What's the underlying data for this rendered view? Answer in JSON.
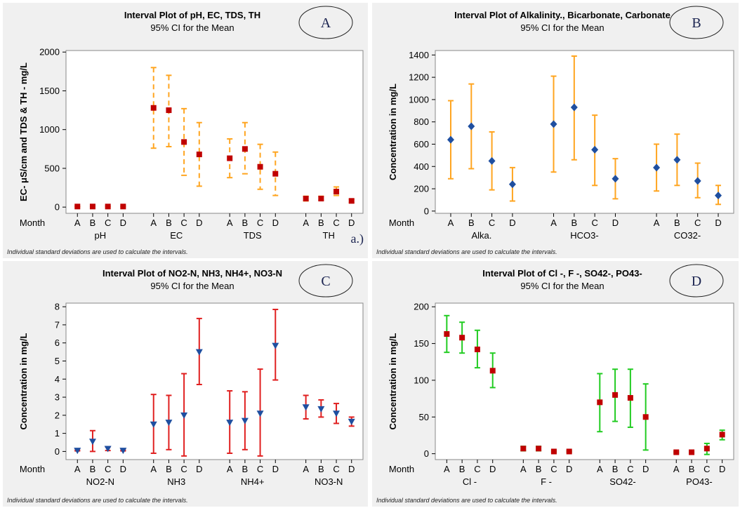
{
  "figure": {
    "footnote": "Individual standard deviations are used to calculate the intervals.",
    "month_label": "Month",
    "sub_label": "a.)"
  },
  "chart_data": [
    {
      "id": "A",
      "badge": "A",
      "type": "interval",
      "title": "Interval Plot of pH, EC, TDS, TH",
      "subtitle": "95% CI for the Mean",
      "ylabel": "EC- μS/cm and TDS & TH - mg/L",
      "ylim": [
        -80,
        2020
      ],
      "yticks": [
        0,
        500,
        1000,
        1500,
        2000
      ],
      "marker": "square",
      "marker_color": "#c00000",
      "bar_color": "#ffa520",
      "dashed": true,
      "groups": [
        {
          "name": "pH",
          "months": [
            "A",
            "B",
            "C",
            "D"
          ],
          "mean": [
            7.5,
            7.6,
            7.4,
            7.5
          ],
          "low": [
            7.0,
            7.1,
            6.9,
            7.0
          ],
          "high": [
            8.0,
            8.1,
            7.9,
            8.0
          ]
        },
        {
          "name": "EC",
          "months": [
            "A",
            "B",
            "C",
            "D"
          ],
          "mean": [
            1280,
            1250,
            840,
            680
          ],
          "low": [
            760,
            780,
            410,
            270
          ],
          "high": [
            1800,
            1700,
            1270,
            1090
          ]
        },
        {
          "name": "TDS",
          "months": [
            "A",
            "B",
            "C",
            "D"
          ],
          "mean": [
            630,
            750,
            520,
            430
          ],
          "low": [
            380,
            430,
            230,
            150
          ],
          "high": [
            880,
            1090,
            810,
            710
          ]
        },
        {
          "name": "TH",
          "months": [
            "A",
            "B",
            "C",
            "D"
          ],
          "mean": [
            110,
            110,
            200,
            80
          ],
          "low": [
            80,
            90,
            150,
            60
          ],
          "high": [
            140,
            140,
            260,
            100
          ]
        }
      ]
    },
    {
      "id": "B",
      "badge": "B",
      "type": "interval",
      "title": "Interval Plot of Alkalinity., Bicarbonate, Carbonate",
      "subtitle": "95% CI for the Mean",
      "ylabel": "Concentration in mg/L",
      "ylim": [
        -20,
        1440
      ],
      "yticks": [
        0,
        200,
        400,
        600,
        800,
        1000,
        1200,
        1400
      ],
      "marker": "diamond",
      "marker_color": "#1f4fa0",
      "bar_color": "#ffa520",
      "dashed": false,
      "groups": [
        {
          "name": "Alka.",
          "months": [
            "A",
            "B",
            "C",
            "D"
          ],
          "mean": [
            640,
            760,
            450,
            240
          ],
          "low": [
            290,
            380,
            190,
            90
          ],
          "high": [
            990,
            1140,
            710,
            390
          ]
        },
        {
          "name": "HCO3-",
          "months": [
            "A",
            "B",
            "C",
            "D"
          ],
          "mean": [
            780,
            930,
            550,
            290
          ],
          "low": [
            350,
            460,
            230,
            110
          ],
          "high": [
            1210,
            1390,
            860,
            470
          ]
        },
        {
          "name": "CO32-",
          "months": [
            "A",
            "B",
            "C",
            "D"
          ],
          "mean": [
            390,
            460,
            270,
            140
          ],
          "low": [
            180,
            230,
            120,
            60
          ],
          "high": [
            600,
            690,
            430,
            230
          ]
        }
      ]
    },
    {
      "id": "C",
      "badge": "C",
      "type": "interval",
      "title": "Interval Plot of NO2-N, NH3, NH4+, NO3-N",
      "subtitle": "95% CI for the Mean",
      "ylabel": "Concentration in mg/L",
      "ylim": [
        -0.45,
        8.2
      ],
      "yticks": [
        0,
        1,
        2,
        3,
        4,
        5,
        6,
        7,
        8
      ],
      "marker": "triangle-down",
      "marker_color": "#1f4fa0",
      "bar_color": "#e02020",
      "dashed": false,
      "groups": [
        {
          "name": "NO2-N",
          "months": [
            "A",
            "B",
            "C",
            "D"
          ],
          "mean": [
            0.05,
            0.55,
            0.15,
            0.05
          ],
          "low": [
            0.03,
            0.0,
            0.05,
            0.03
          ],
          "high": [
            0.07,
            1.15,
            0.25,
            0.07
          ]
        },
        {
          "name": "NH3",
          "months": [
            "A",
            "B",
            "C",
            "D"
          ],
          "mean": [
            1.5,
            1.6,
            2.0,
            5.5
          ],
          "low": [
            -0.1,
            0.1,
            -0.25,
            3.7
          ],
          "high": [
            3.15,
            3.1,
            4.3,
            7.35
          ]
        },
        {
          "name": "NH4+",
          "months": [
            "A",
            "B",
            "C",
            "D"
          ],
          "mean": [
            1.6,
            1.7,
            2.1,
            5.85
          ],
          "low": [
            -0.1,
            0.1,
            -0.25,
            3.95
          ],
          "high": [
            3.35,
            3.3,
            4.55,
            7.85
          ]
        },
        {
          "name": "NO3-N",
          "months": [
            "A",
            "B",
            "C",
            "D"
          ],
          "mean": [
            2.45,
            2.35,
            2.1,
            1.65
          ],
          "low": [
            1.8,
            1.9,
            1.55,
            1.4
          ],
          "high": [
            3.1,
            2.85,
            2.65,
            1.9
          ]
        }
      ]
    },
    {
      "id": "D",
      "badge": "D",
      "type": "interval",
      "title": "Interval Plot of Cl -, F -, SO42-, PO43-",
      "subtitle": "95% CI for the Mean",
      "ylabel": "Concentration in mg/L",
      "ylim": [
        -8,
        205
      ],
      "yticks": [
        0,
        50,
        100,
        150,
        200
      ],
      "marker": "square",
      "marker_color": "#c00000",
      "bar_color": "#22cc22",
      "dashed": false,
      "groups": [
        {
          "name": "Cl -",
          "months": [
            "A",
            "B",
            "C",
            "D"
          ],
          "mean": [
            163,
            158,
            142,
            113
          ],
          "low": [
            138,
            137,
            117,
            90
          ],
          "high": [
            188,
            179,
            168,
            137
          ]
        },
        {
          "name": "F -",
          "months": [
            "A",
            "B",
            "C",
            "D"
          ],
          "mean": [
            7,
            7,
            3,
            3
          ],
          "low": [
            4,
            4,
            2,
            2
          ],
          "high": [
            10,
            10,
            4,
            4
          ]
        },
        {
          "name": "SO42-",
          "months": [
            "A",
            "B",
            "C",
            "D"
          ],
          "mean": [
            70,
            80,
            76,
            50
          ],
          "low": [
            30,
            44,
            36,
            5
          ],
          "high": [
            109,
            115,
            115,
            95
          ]
        },
        {
          "name": "PO43-",
          "months": [
            "A",
            "B",
            "C",
            "D"
          ],
          "mean": [
            2,
            2,
            7,
            26
          ],
          "low": [
            1,
            1,
            -1,
            19
          ],
          "high": [
            3,
            3,
            14,
            32
          ]
        }
      ]
    }
  ]
}
